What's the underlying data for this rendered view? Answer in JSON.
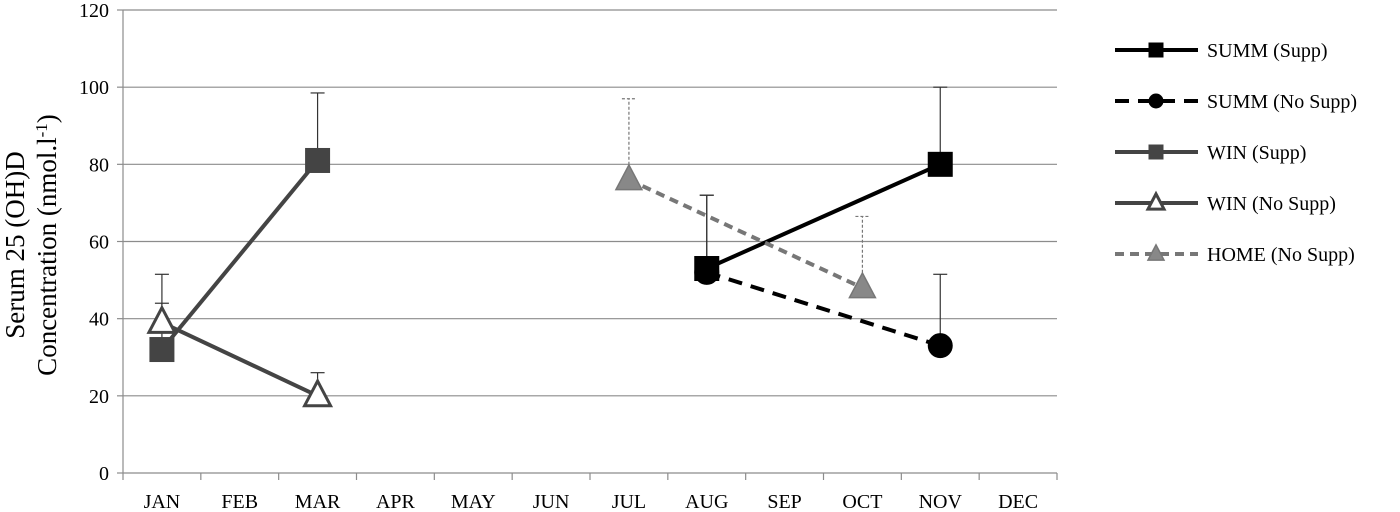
{
  "chart_data": {
    "type": "line",
    "title": "",
    "xlabel": "",
    "ylabel_lines": [
      "Serum 25 (OH)D",
      "Concentration (nmol.l",
      "-1",
      ")"
    ],
    "categories": [
      "JAN",
      "FEB",
      "MAR",
      "APR",
      "MAY",
      "JUN",
      "JUL",
      "AUG",
      "SEP",
      "OCT",
      "NOV",
      "DEC"
    ],
    "ylim": [
      0,
      120
    ],
    "yticks": [
      0,
      20,
      40,
      60,
      80,
      100,
      120
    ],
    "grid": true,
    "legend_position": "right",
    "series": [
      {
        "name": "SUMM (Supp)",
        "color": "#000000",
        "dash": "solid",
        "marker": "square",
        "fill": "#000000",
        "points": [
          {
            "x": "AUG",
            "y": 53,
            "err": 19
          },
          {
            "x": "NOV",
            "y": 80,
            "err": 20
          }
        ]
      },
      {
        "name": "SUMM (No Supp)",
        "color": "#000000",
        "dash": "dashed",
        "marker": "circle",
        "fill": "#000000",
        "points": [
          {
            "x": "AUG",
            "y": 52,
            "err": 20
          },
          {
            "x": "NOV",
            "y": 33,
            "err": 18.5
          }
        ]
      },
      {
        "name": "WIN (Supp)",
        "color": "#444444",
        "dash": "solid",
        "marker": "square",
        "fill": "#444444",
        "points": [
          {
            "x": "JAN",
            "y": 32,
            "err": 12
          },
          {
            "x": "MAR",
            "y": 81,
            "err": 17.5
          }
        ]
      },
      {
        "name": "WIN (No Supp)",
        "color": "#444444",
        "dash": "solid",
        "marker": "triangle",
        "fill": "#ffffff",
        "points": [
          {
            "x": "JAN",
            "y": 39,
            "err": 12.5
          },
          {
            "x": "MAR",
            "y": 20,
            "err": 6
          }
        ]
      },
      {
        "name": "HOME (No Supp)",
        "color": "#777777",
        "dash": "dotted",
        "marker": "triangle",
        "fill": "#888888",
        "points": [
          {
            "x": "JUL",
            "y": 76,
            "err": 21
          },
          {
            "x": "OCT",
            "y": 48,
            "err": 18.5
          }
        ]
      }
    ]
  }
}
